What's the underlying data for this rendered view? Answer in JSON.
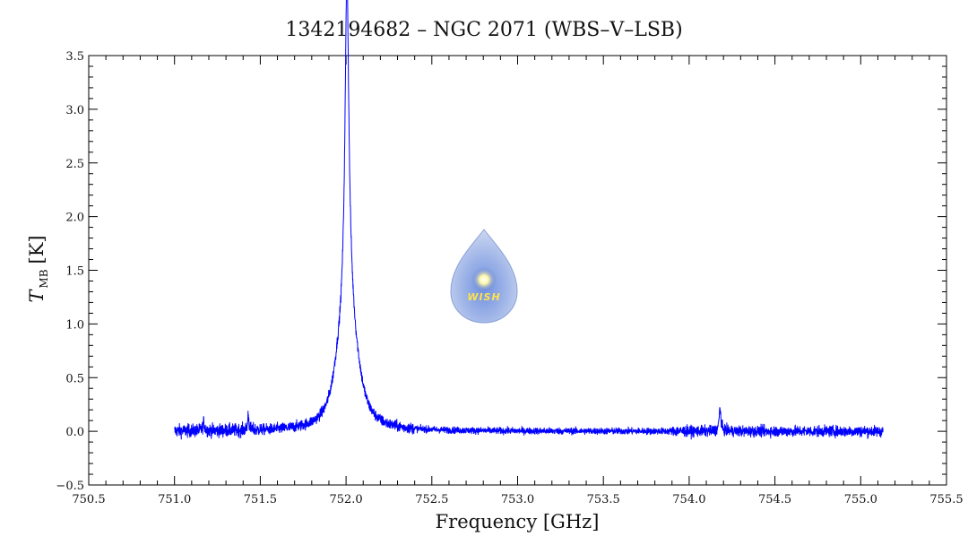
{
  "chart_data": {
    "type": "line",
    "title": "1342194682 – NGC 2071 (WBS–V–LSB)",
    "xlabel": "Frequency [GHz]",
    "ylabel_main": "T",
    "ylabel_sub": "MB",
    "ylabel_unit": "[K]",
    "xlim": [
      750.5,
      755.5
    ],
    "ylim": [
      -0.5,
      3.5
    ],
    "xticks": [
      "750.5",
      "751.0",
      "751.5",
      "752.0",
      "752.5",
      "753.0",
      "753.5",
      "754.0",
      "754.5",
      "755.0",
      "755.5"
    ],
    "yticks": [
      "−0.5",
      "0.0",
      "0.5",
      "1.0",
      "1.5",
      "2.0",
      "2.5",
      "3.0",
      "3.5"
    ],
    "grid": false,
    "series": [
      {
        "color": "#0000ff",
        "x_range": [
          751.0,
          755.13
        ],
        "baseline": 0.0,
        "noise_rms": 0.025,
        "lines": [
          {
            "center": 752.005,
            "peak": 2.9,
            "width": 0.013
          },
          {
            "center": 752.01,
            "peak": 1.25,
            "width": 0.05
          },
          {
            "center": 751.95,
            "peak": 0.18,
            "width": 0.04
          },
          {
            "center": 752.07,
            "peak": 0.12,
            "width": 0.04
          },
          {
            "center": 754.18,
            "peak": 0.22,
            "width": 0.006
          },
          {
            "center": 751.43,
            "peak": 0.15,
            "width": 0.004
          },
          {
            "center": 751.17,
            "peak": 0.08,
            "width": 0.006
          }
        ]
      }
    ]
  },
  "logo": {
    "label": "WISH"
  }
}
